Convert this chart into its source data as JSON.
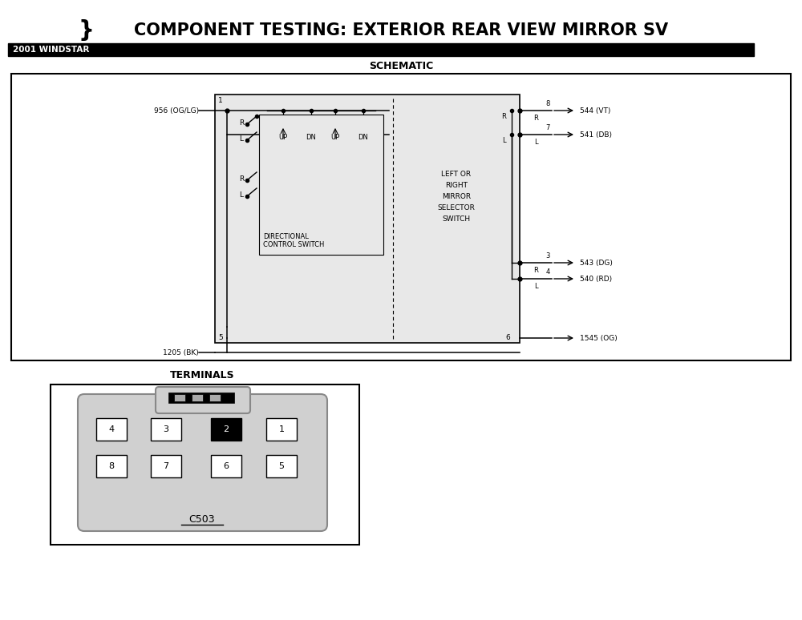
{
  "bg_color": "#ffffff",
  "title_brace": "}",
  "title_text": "COMPONENT TESTING: EXTERIOR REAR VIEW MIRROR SV",
  "subtitle": "2001 WINDSTAR",
  "schematic_label": "SCHEMATIC",
  "terminals_label": "TERMINALS",
  "connector_label": "C503",
  "wire_color": "#000000",
  "box_fill_light": "#e8e8e8",
  "box_fill_mid": "#d0d0d0",
  "box_fill_dark": "#c0c0c0",
  "terminal_pin_row1": [
    "4",
    "3",
    "2",
    "1"
  ],
  "terminal_pin_row2": [
    "8",
    "7",
    "6",
    "5"
  ],
  "black_pin": "2"
}
